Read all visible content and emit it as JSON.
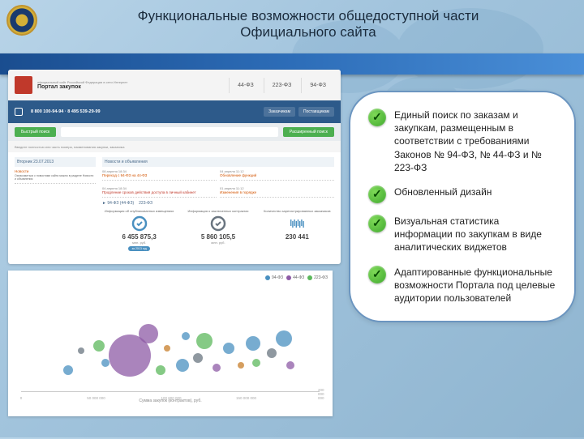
{
  "slide": {
    "title_line1": "Функциональные возможности общедоступной части",
    "title_line2": "Официального сайта"
  },
  "features": [
    "Единый поиск по заказам и закупкам, размещенным в соответствии с требованиями Законов № 94-ФЗ, № 44-ФЗ и № 223-ФЗ",
    "Обновленный дизайн",
    "Визуальная статистика информации по закупкам в виде аналитических виджетов",
    "Адаптированные функциональные возможности Портала под целевые аудитории пользователей"
  ],
  "screenshot": {
    "portal_title": "Портал закупок",
    "portal_sub": "официальный сайт Российской Федерации в сети Интернет",
    "law_tabs": [
      "44-ФЗ",
      "223-ФЗ",
      "94-ФЗ"
    ],
    "phones": "8 800 100-94-94  ·  8 495 539-29-99",
    "nav_buttons": [
      "Заказчикам",
      "Поставщикам"
    ],
    "search_btn": "Быстрый поиск",
    "search_adv": "Расширенный поиск",
    "search_hint": "Введите полностью или часть номера, наименования закупки, заказчика",
    "side_date": "Вторник 23.07.2013",
    "side_news": "Новости",
    "side_text": "Ознакомиться с новостями сайта можно в разделе Новости и объявления",
    "news_header": "Новости и объявления",
    "news_items": [
      {
        "date": "08 апреля 18:34",
        "title": "Переход с 94-ФЗ на 44-ФЗ"
      },
      {
        "date": "04 апреля 11:12",
        "title": "Обновление функций"
      },
      {
        "date": "04 апреля 18:34",
        "title": "Продление сроков действия доступа в личный кабинет",
        "highlight": true
      },
      {
        "date": "01 апреля 11:12",
        "title": "Изменения в порядке"
      }
    ],
    "stats_tabs": [
      "94-ФЗ (44-ФЗ)",
      "223-ФЗ"
    ],
    "stats": [
      {
        "label": "Информация об опубликованных извещениях",
        "value": "6 455 875,3",
        "unit": "млн. руб.",
        "icon_color": "#4a90c0"
      },
      {
        "label": "Информация о заключенных контрактах",
        "value": "5 860 105,5",
        "unit": "млн. руб.",
        "icon_color": "#6a7580"
      },
      {
        "label": "Количество зарегистрированных заказчиков",
        "value": "230 441",
        "unit": "",
        "icon_color": "#4a90c0"
      }
    ],
    "badge": "за 2013 год"
  },
  "chart": {
    "xlabel": "Сумма закупок (контрактов), руб.",
    "legend": [
      {
        "label": "94-ФЗ",
        "color": "#4a90c0"
      },
      {
        "label": "44-ФЗ",
        "color": "#8e5ba6"
      },
      {
        "label": "223-ФЗ",
        "color": "#5cb85c"
      }
    ],
    "bubbles": [
      {
        "x": 38,
        "y": 66,
        "r": 26,
        "color": "#8e5ba6"
      },
      {
        "x": 44,
        "y": 48,
        "r": 12,
        "color": "#8e5ba6"
      },
      {
        "x": 18,
        "y": 78,
        "r": 6,
        "color": "#4a90c0"
      },
      {
        "x": 22,
        "y": 62,
        "r": 4,
        "color": "#6a7580"
      },
      {
        "x": 28,
        "y": 58,
        "r": 7,
        "color": "#5cb85c"
      },
      {
        "x": 30,
        "y": 72,
        "r": 5,
        "color": "#4a90c0"
      },
      {
        "x": 48,
        "y": 78,
        "r": 6,
        "color": "#5cb85c"
      },
      {
        "x": 50,
        "y": 60,
        "r": 4,
        "color": "#c77d2a"
      },
      {
        "x": 55,
        "y": 74,
        "r": 8,
        "color": "#4a90c0"
      },
      {
        "x": 56,
        "y": 50,
        "r": 5,
        "color": "#4a90c0"
      },
      {
        "x": 60,
        "y": 68,
        "r": 6,
        "color": "#6a7580"
      },
      {
        "x": 62,
        "y": 54,
        "r": 10,
        "color": "#5cb85c"
      },
      {
        "x": 66,
        "y": 76,
        "r": 5,
        "color": "#8e5ba6"
      },
      {
        "x": 70,
        "y": 60,
        "r": 7,
        "color": "#4a90c0"
      },
      {
        "x": 74,
        "y": 74,
        "r": 4,
        "color": "#c77d2a"
      },
      {
        "x": 78,
        "y": 56,
        "r": 9,
        "color": "#4a90c0"
      },
      {
        "x": 79,
        "y": 72,
        "r": 5,
        "color": "#5cb85c"
      },
      {
        "x": 84,
        "y": 64,
        "r": 6,
        "color": "#6a7580"
      },
      {
        "x": 88,
        "y": 52,
        "r": 10,
        "color": "#4a90c0"
      },
      {
        "x": 90,
        "y": 74,
        "r": 5,
        "color": "#8e5ba6"
      }
    ],
    "xticks": [
      "0",
      "50 000 000",
      "100 000 000",
      "150 000 000",
      "200 000 000"
    ]
  },
  "colors": {
    "accent_green": "#4caf50",
    "header_blue": "#2d5a8a",
    "callout_border": "#6b95c0"
  }
}
